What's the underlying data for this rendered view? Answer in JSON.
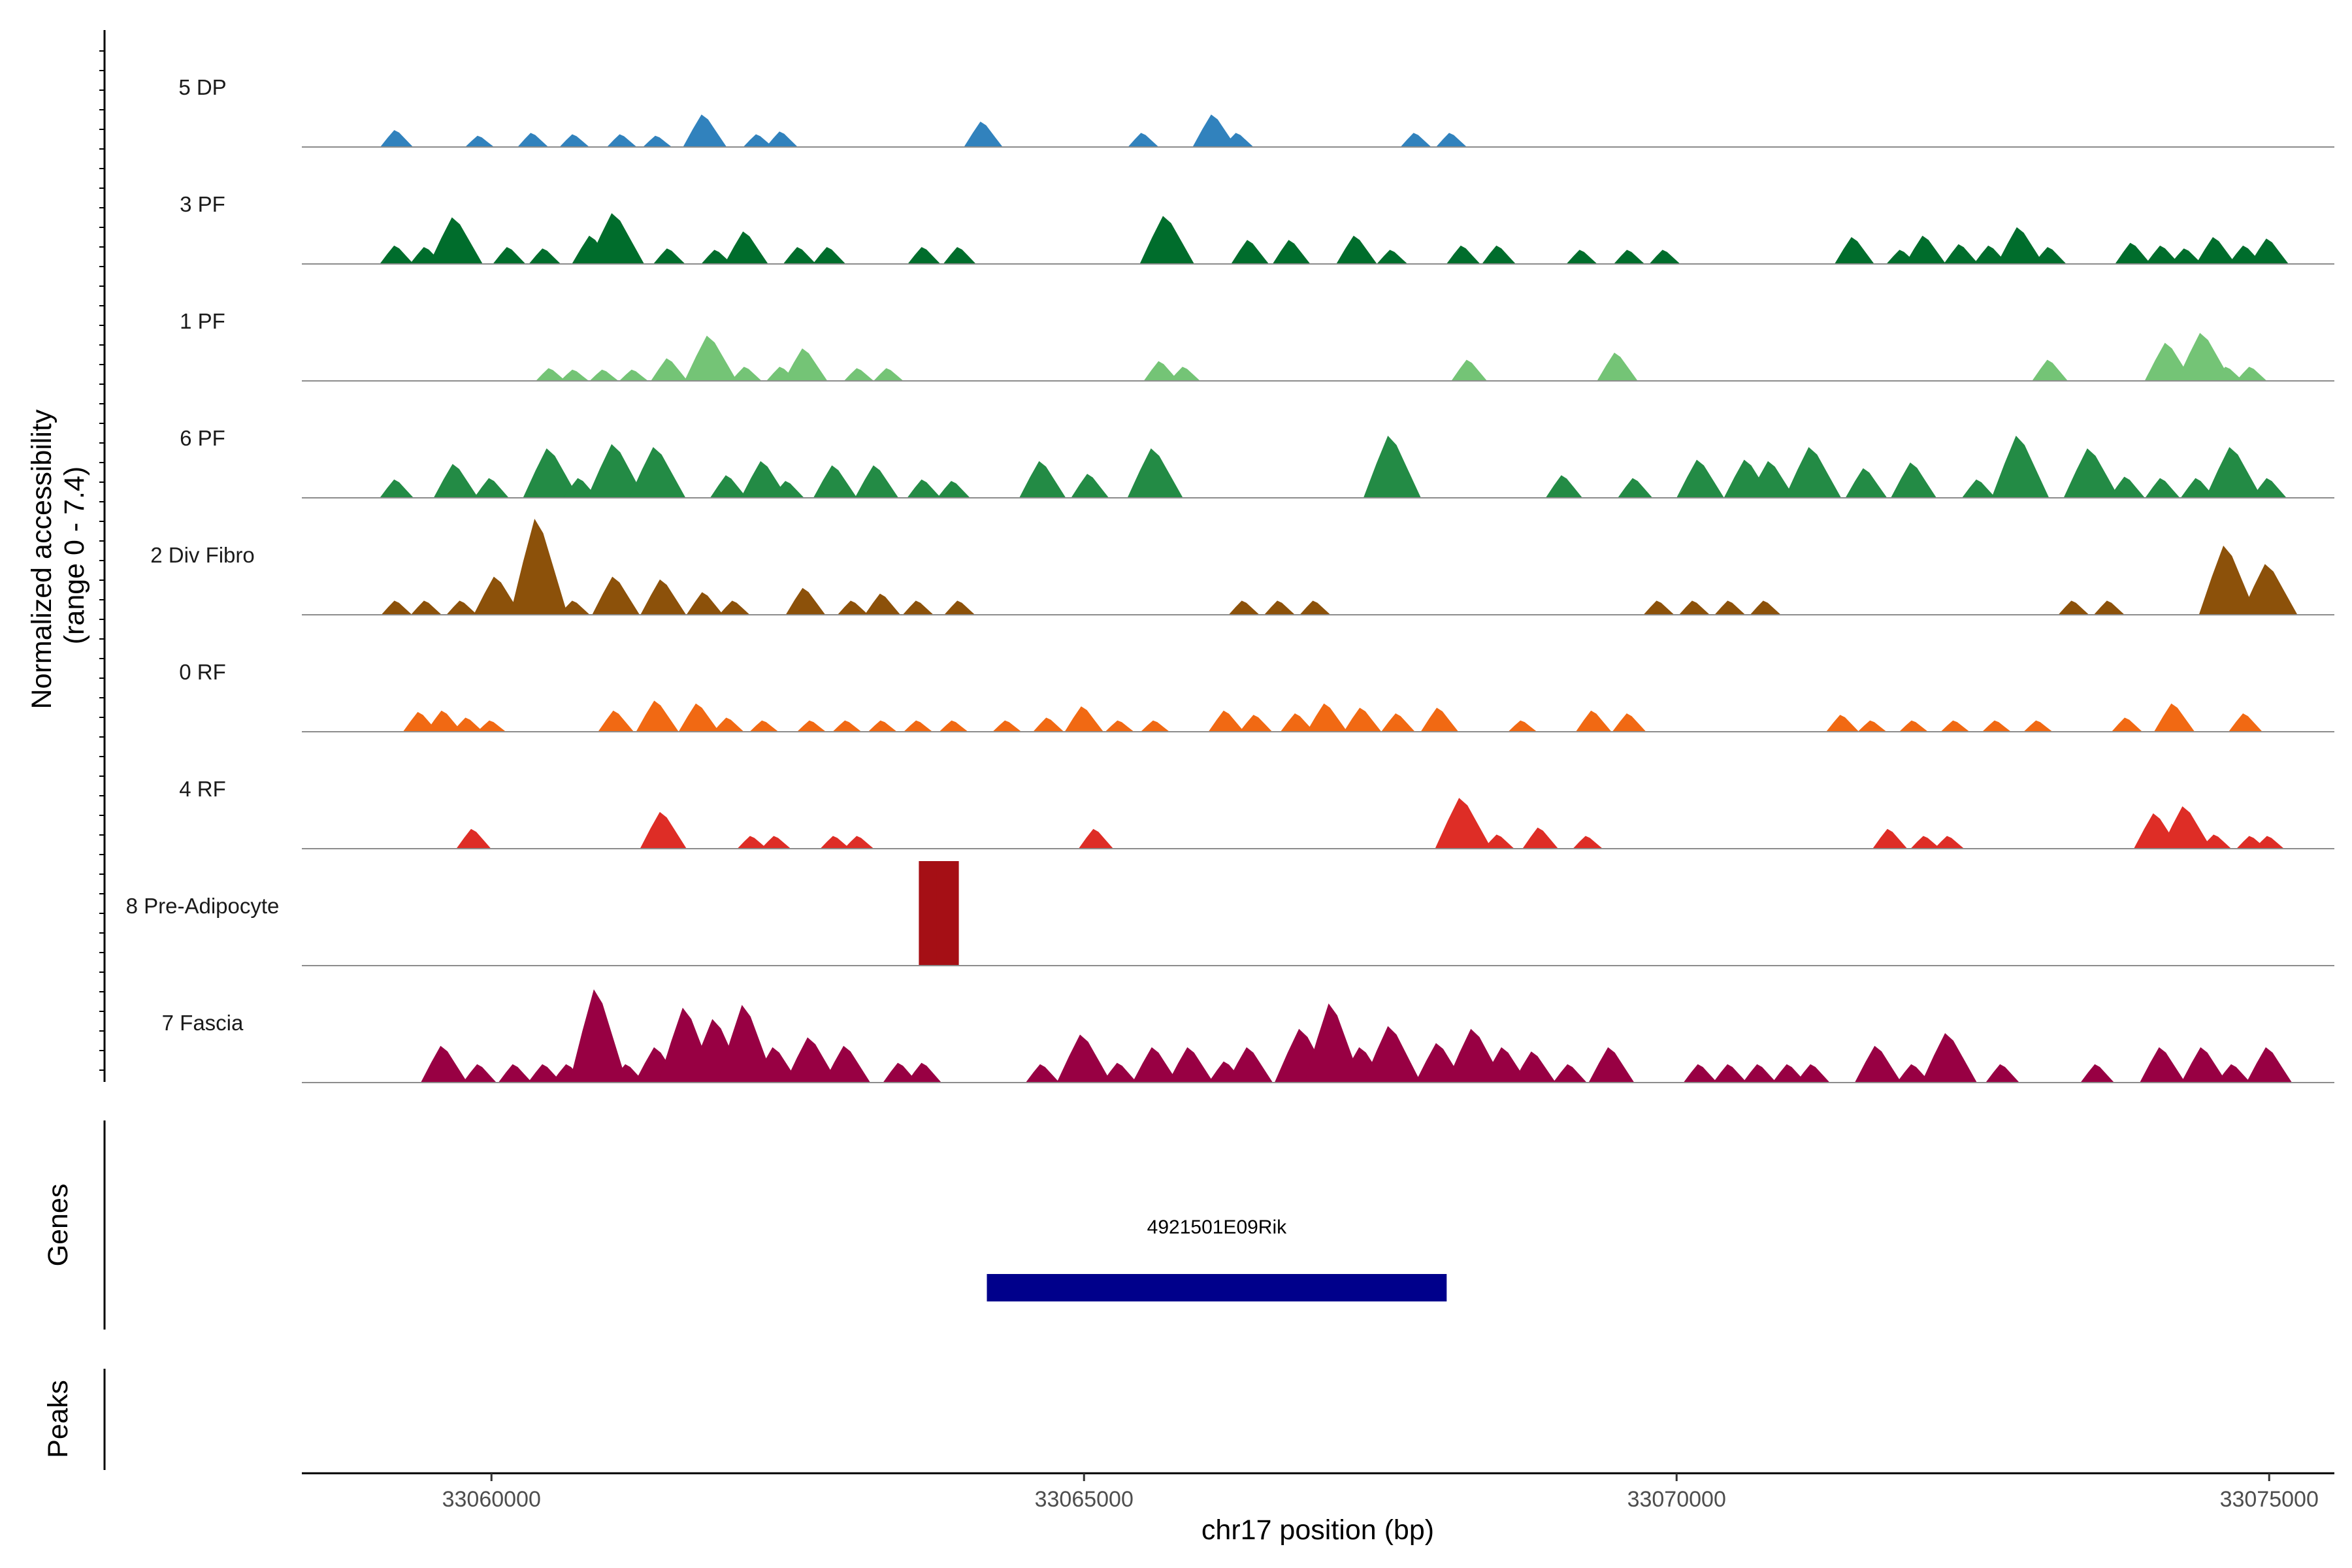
{
  "chart_data": {
    "type": "area",
    "title": "",
    "xlabel": "chr17 position (bp)",
    "ylabel": "Normalized accessibility\n(range 0 - 7.4)",
    "ylabel_lines": [
      "Normalized accessibility",
      "(range 0 - 7.4)"
    ],
    "ylim": [
      0,
      7.4
    ],
    "xlim": [
      33058400,
      33075550
    ],
    "x_ticks": [
      33060000,
      33065000,
      33070000,
      33075000
    ],
    "x_tick_labels": [
      "33060000",
      "33065000",
      "33070000",
      "33075000"
    ],
    "series": [
      {
        "name": "5 DP",
        "color": "#3182bd",
        "peaks": [
          [
            33059200,
            1.2
          ],
          [
            33059900,
            0.8
          ],
          [
            33060350,
            1.0
          ],
          [
            33060700,
            0.9
          ],
          [
            33061100,
            0.9
          ],
          [
            33061400,
            0.8
          ],
          [
            33061800,
            2.3
          ],
          [
            33062250,
            0.9
          ],
          [
            33062450,
            1.1
          ],
          [
            33064150,
            1.8
          ],
          [
            33065500,
            1.0
          ],
          [
            33066100,
            2.3
          ],
          [
            33066300,
            1.0
          ],
          [
            33067800,
            1.0
          ],
          [
            33068100,
            1.0
          ]
        ]
      },
      {
        "name": "3 PF",
        "color": "#006d2c",
        "peaks": [
          [
            33059200,
            1.3
          ],
          [
            33059450,
            1.2
          ],
          [
            33059700,
            3.3
          ],
          [
            33060150,
            1.2
          ],
          [
            33060450,
            1.1
          ],
          [
            33060850,
            2.0
          ],
          [
            33061050,
            3.6
          ],
          [
            33061500,
            1.1
          ],
          [
            33061900,
            1.0
          ],
          [
            33062150,
            2.3
          ],
          [
            33062600,
            1.2
          ],
          [
            33062850,
            1.2
          ],
          [
            33063650,
            1.2
          ],
          [
            33063950,
            1.2
          ],
          [
            33065700,
            3.4
          ],
          [
            33066400,
            1.7
          ],
          [
            33066750,
            1.7
          ],
          [
            33067300,
            2.0
          ],
          [
            33067600,
            1.0
          ],
          [
            33068200,
            1.3
          ],
          [
            33068500,
            1.3
          ],
          [
            33069200,
            1.0
          ],
          [
            33069600,
            1.0
          ],
          [
            33069900,
            1.0
          ],
          [
            33071500,
            1.9
          ],
          [
            33071900,
            1.0
          ],
          [
            33072100,
            2.0
          ],
          [
            33072400,
            1.4
          ],
          [
            33072650,
            1.3
          ],
          [
            33072900,
            2.6
          ],
          [
            33073150,
            1.2
          ],
          [
            33073850,
            1.5
          ],
          [
            33074100,
            1.3
          ],
          [
            33074300,
            1.1
          ],
          [
            33074550,
            1.9
          ],
          [
            33074800,
            1.3
          ],
          [
            33075000,
            1.8
          ]
        ]
      },
      {
        "name": "1 PF",
        "color": "#74c476",
        "peaks": [
          [
            33060500,
            0.9
          ],
          [
            33060700,
            0.8
          ],
          [
            33060950,
            0.8
          ],
          [
            33061200,
            0.8
          ],
          [
            33061500,
            1.6
          ],
          [
            33061850,
            3.2
          ],
          [
            33062150,
            1.0
          ],
          [
            33062450,
            1.0
          ],
          [
            33062650,
            2.3
          ],
          [
            33063100,
            0.9
          ],
          [
            33063350,
            0.9
          ],
          [
            33065650,
            1.4
          ],
          [
            33065850,
            1.0
          ],
          [
            33068250,
            1.5
          ],
          [
            33069500,
            2.0
          ],
          [
            33073150,
            1.5
          ],
          [
            33074150,
            2.7
          ],
          [
            33074450,
            3.4
          ],
          [
            33074650,
            1.0
          ],
          [
            33074850,
            1.0
          ]
        ]
      },
      {
        "name": "6 PF",
        "color": "#238b45",
        "peaks": [
          [
            33059200,
            1.3
          ],
          [
            33059700,
            2.4
          ],
          [
            33060000,
            1.4
          ],
          [
            33060500,
            3.5
          ],
          [
            33060750,
            1.4
          ],
          [
            33061050,
            3.8
          ],
          [
            33061400,
            3.6
          ],
          [
            33062000,
            1.6
          ],
          [
            33062300,
            2.6
          ],
          [
            33062500,
            1.2
          ],
          [
            33062900,
            2.3
          ],
          [
            33063250,
            2.3
          ],
          [
            33063650,
            1.3
          ],
          [
            33063900,
            1.2
          ],
          [
            33064650,
            2.6
          ],
          [
            33065050,
            1.7
          ],
          [
            33065600,
            3.5
          ],
          [
            33067600,
            4.4
          ],
          [
            33069050,
            1.6
          ],
          [
            33069650,
            1.4
          ],
          [
            33070200,
            2.7
          ],
          [
            33070600,
            2.7
          ],
          [
            33070800,
            2.6
          ],
          [
            33071150,
            3.6
          ],
          [
            33071600,
            2.1
          ],
          [
            33072000,
            2.5
          ],
          [
            33072550,
            1.3
          ],
          [
            33072900,
            4.4
          ],
          [
            33073500,
            3.5
          ],
          [
            33073800,
            1.5
          ],
          [
            33074100,
            1.4
          ],
          [
            33074400,
            1.4
          ],
          [
            33074700,
            3.6
          ],
          [
            33075000,
            1.4
          ]
        ]
      },
      {
        "name": "2 Div Fibro",
        "color": "#8c510a",
        "peaks": [
          [
            33059200,
            1.0
          ],
          [
            33059450,
            1.0
          ],
          [
            33059750,
            1.0
          ],
          [
            33060050,
            2.7
          ],
          [
            33060400,
            6.8
          ],
          [
            33060700,
            1.0
          ],
          [
            33061050,
            2.7
          ],
          [
            33061450,
            2.5
          ],
          [
            33061800,
            1.6
          ],
          [
            33062050,
            1.0
          ],
          [
            33062650,
            1.9
          ],
          [
            33063050,
            1.0
          ],
          [
            33063300,
            1.5
          ],
          [
            33063600,
            1.0
          ],
          [
            33063950,
            1.0
          ],
          [
            33066350,
            1.0
          ],
          [
            33066650,
            1.0
          ],
          [
            33066950,
            1.0
          ],
          [
            33069850,
            1.0
          ],
          [
            33070150,
            1.0
          ],
          [
            33070450,
            1.0
          ],
          [
            33070750,
            1.0
          ],
          [
            33073350,
            1.0
          ],
          [
            33073650,
            1.0
          ],
          [
            33074650,
            4.9
          ],
          [
            33075000,
            3.6
          ]
        ]
      },
      {
        "name": "0 RF",
        "color": "#f16913",
        "peaks": [
          [
            33059400,
            1.4
          ],
          [
            33059600,
            1.5
          ],
          [
            33059800,
            1.0
          ],
          [
            33060000,
            0.8
          ],
          [
            33061050,
            1.5
          ],
          [
            33061400,
            2.2
          ],
          [
            33061750,
            2.0
          ],
          [
            33062000,
            1.0
          ],
          [
            33062300,
            0.8
          ],
          [
            33062700,
            0.8
          ],
          [
            33063000,
            0.8
          ],
          [
            33063300,
            0.8
          ],
          [
            33063600,
            0.8
          ],
          [
            33063900,
            0.8
          ],
          [
            33064350,
            0.8
          ],
          [
            33064700,
            1.0
          ],
          [
            33065000,
            1.8
          ],
          [
            33065300,
            0.8
          ],
          [
            33065600,
            0.8
          ],
          [
            33066200,
            1.5
          ],
          [
            33066450,
            1.2
          ],
          [
            33066800,
            1.3
          ],
          [
            33067050,
            2.0
          ],
          [
            33067350,
            1.7
          ],
          [
            33067650,
            1.3
          ],
          [
            33068000,
            1.7
          ],
          [
            33068700,
            0.8
          ],
          [
            33069300,
            1.5
          ],
          [
            33069600,
            1.3
          ],
          [
            33071400,
            1.2
          ],
          [
            33071650,
            0.8
          ],
          [
            33072000,
            0.8
          ],
          [
            33072350,
            0.8
          ],
          [
            33072700,
            0.8
          ],
          [
            33073050,
            0.8
          ],
          [
            33073800,
            1.0
          ],
          [
            33074200,
            2.0
          ],
          [
            33074800,
            1.3
          ]
        ]
      },
      {
        "name": "4 RF",
        "color": "#de2d26",
        "peaks": [
          [
            33059850,
            1.4
          ],
          [
            33061450,
            2.6
          ],
          [
            33062200,
            0.9
          ],
          [
            33062400,
            0.9
          ],
          [
            33062900,
            0.9
          ],
          [
            33063100,
            0.9
          ],
          [
            33065100,
            1.4
          ],
          [
            33068200,
            3.6
          ],
          [
            33068500,
            1.0
          ],
          [
            33068850,
            1.5
          ],
          [
            33069250,
            0.9
          ],
          [
            33071800,
            1.4
          ],
          [
            33072100,
            0.9
          ],
          [
            33072300,
            0.9
          ],
          [
            33074050,
            2.5
          ],
          [
            33074300,
            3.0
          ],
          [
            33074550,
            1.0
          ],
          [
            33074850,
            0.9
          ],
          [
            33075000,
            0.9
          ]
        ]
      },
      {
        "name": "8 Pre-Adipocyte",
        "color": "#a50f15",
        "peaks": [
          [
            33063700,
            7.4
          ],
          [
            33063850,
            7.4
          ]
        ]
      },
      {
        "name": "7 Fascia",
        "color": "#980043",
        "peaks": [
          [
            33059600,
            2.6
          ],
          [
            33059900,
            1.3
          ],
          [
            33060200,
            1.3
          ],
          [
            33060450,
            1.3
          ],
          [
            33060650,
            1.3
          ],
          [
            33060900,
            6.6
          ],
          [
            33061150,
            1.3
          ],
          [
            33061400,
            2.5
          ],
          [
            33061650,
            5.3
          ],
          [
            33061900,
            4.5
          ],
          [
            33062150,
            5.5
          ],
          [
            33062400,
            2.5
          ],
          [
            33062700,
            3.2
          ],
          [
            33063000,
            2.6
          ],
          [
            33063450,
            1.4
          ],
          [
            33063650,
            1.4
          ],
          [
            33064650,
            1.3
          ],
          [
            33065000,
            3.4
          ],
          [
            33065300,
            1.4
          ],
          [
            33065600,
            2.5
          ],
          [
            33065900,
            2.5
          ],
          [
            33066200,
            1.5
          ],
          [
            33066400,
            2.5
          ],
          [
            33066850,
            3.8
          ],
          [
            33067100,
            5.6
          ],
          [
            33067350,
            2.5
          ],
          [
            33067600,
            4.0
          ],
          [
            33068000,
            2.8
          ],
          [
            33068300,
            3.8
          ],
          [
            33068550,
            2.5
          ],
          [
            33068800,
            2.2
          ],
          [
            33069100,
            1.3
          ],
          [
            33069450,
            2.5
          ],
          [
            33070200,
            1.3
          ],
          [
            33070450,
            1.3
          ],
          [
            33070700,
            1.3
          ],
          [
            33070950,
            1.3
          ],
          [
            33071150,
            1.3
          ],
          [
            33071700,
            2.6
          ],
          [
            33072000,
            1.3
          ],
          [
            33072300,
            3.5
          ],
          [
            33072750,
            1.3
          ],
          [
            33073550,
            1.3
          ],
          [
            33074100,
            2.5
          ],
          [
            33074450,
            2.5
          ],
          [
            33074700,
            1.3
          ],
          [
            33075000,
            2.5
          ]
        ]
      }
    ]
  },
  "genes": {
    "title": "Genes",
    "items": [
      {
        "name": "4921501E09Rik",
        "start": 33064180,
        "end": 33068060,
        "color": "#00008b"
      }
    ]
  },
  "peaks_track": {
    "title": "Peaks"
  }
}
